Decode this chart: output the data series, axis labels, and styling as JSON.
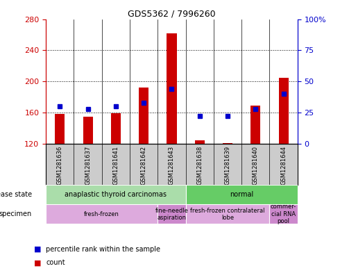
{
  "title": "GDS5362 / 7996260",
  "samples": [
    "GSM1281636",
    "GSM1281637",
    "GSM1281641",
    "GSM1281642",
    "GSM1281643",
    "GSM1281638",
    "GSM1281639",
    "GSM1281640",
    "GSM1281644"
  ],
  "counts": [
    158,
    155,
    159,
    192,
    262,
    124,
    121,
    169,
    205
  ],
  "percentile_ranks": [
    30,
    28,
    30,
    33,
    44,
    22,
    22,
    28,
    40
  ],
  "y_min": 120,
  "y_max": 280,
  "y_ticks": [
    120,
    160,
    200,
    240,
    280
  ],
  "y2_ticks": [
    0,
    25,
    50,
    75,
    100
  ],
  "bar_color": "#cc0000",
  "dot_color": "#0000cc",
  "disease_state": [
    {
      "label": "anaplastic thyroid carcinomas",
      "start": 0,
      "end": 5,
      "color": "#aaddaa"
    },
    {
      "label": "normal",
      "start": 5,
      "end": 9,
      "color": "#66cc66"
    }
  ],
  "specimen": [
    {
      "label": "fresh-frozen",
      "start": 0,
      "end": 4,
      "color": "#ddaadd"
    },
    {
      "label": "fine-needle\naspiration",
      "start": 4,
      "end": 5,
      "color": "#cc88cc"
    },
    {
      "label": "fresh-frozen contralateral\nlobe",
      "start": 5,
      "end": 8,
      "color": "#ddaadd"
    },
    {
      "label": "commer-\ncial RNA\npool",
      "start": 8,
      "end": 9,
      "color": "#cc88cc"
    }
  ],
  "bg_color": "#ffffff",
  "plot_bg": "#ffffff",
  "axis_left_color": "#cc0000",
  "axis_right_color": "#0000cc",
  "label_bg": "#cccccc"
}
